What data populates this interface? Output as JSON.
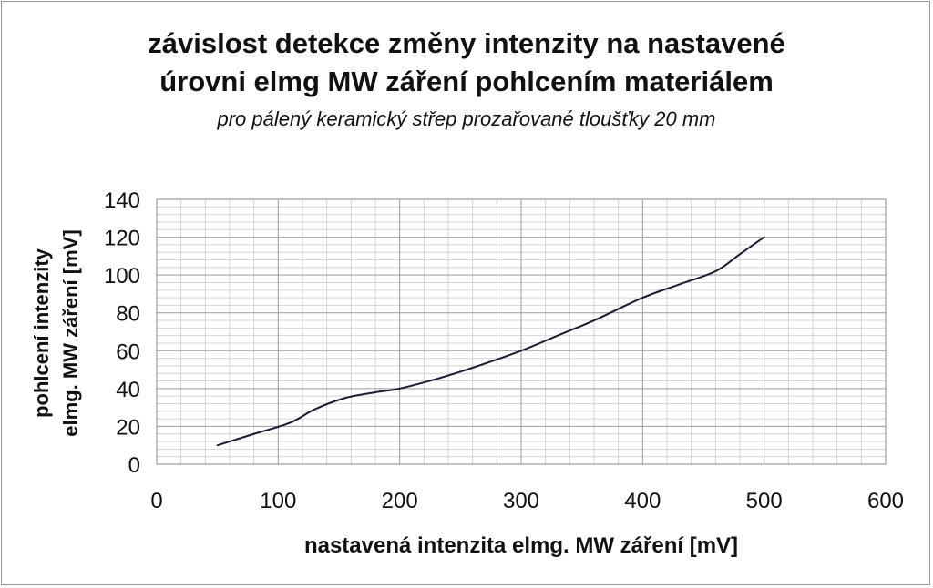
{
  "chart_data": {
    "type": "line",
    "title": "závislost detekce změny intenzity na nastavené",
    "title_line2": "úrovni elmg MW záření pohlcením materiálem",
    "subtitle": "pro pálený keramický střep prozařované tloušťky 20 mm",
    "xlabel": "nastavená intenzita elmg. MW záření [mV]",
    "ylabel_line1": "pohlcení intenzity",
    "ylabel_line2": "elmg. MW záření [mV]",
    "xlim": [
      0,
      600
    ],
    "ylim": [
      0,
      140
    ],
    "x_ticks": [
      0,
      100,
      200,
      300,
      400,
      500,
      600
    ],
    "y_ticks": [
      0,
      20,
      40,
      60,
      80,
      100,
      120,
      140
    ],
    "grid": true,
    "legend": "none",
    "line_color": "#1a1a3a",
    "series": [
      {
        "x": [
          50,
          80,
          110,
          130,
          155,
          180,
          200,
          230,
          260,
          300,
          330,
          360,
          400,
          430,
          460,
          480,
          500
        ],
        "y": [
          10,
          16,
          22,
          29,
          35,
          38,
          40,
          45,
          51,
          60,
          68,
          76,
          88,
          95,
          102,
          111,
          120
        ]
      }
    ]
  }
}
